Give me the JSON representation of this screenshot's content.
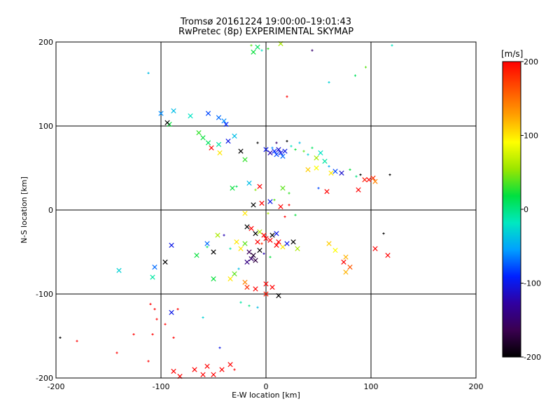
{
  "chart_data": {
    "type": "scatter",
    "title": "Tromsø 20161224 19:00:00–19:01:43",
    "subtitle": "RwPretec (8p) EXPERIMENTAL SKYMAP",
    "xlabel": "E-W location [km]",
    "ylabel": "N-S location [km]",
    "xlim": [
      -200,
      200
    ],
    "ylim": [
      -200,
      200
    ],
    "xticks": [
      -200,
      -100,
      0,
      100,
      200
    ],
    "yticks": [
      -200,
      -100,
      0,
      100,
      200
    ],
    "grid": true,
    "colorbar": {
      "label": "[m/s]",
      "range": [
        -200,
        200
      ],
      "ticks": [
        200,
        100,
        0,
        -100,
        -200
      ],
      "colormap": [
        "#000000",
        "#3a0050",
        "#3000a0",
        "#0020ff",
        "#00a0ff",
        "#00e8c0",
        "#00e040",
        "#9ae600",
        "#ffff00",
        "#ffa000",
        "#ff5000",
        "#ff0000"
      ]
    },
    "marker_types": [
      "x",
      "+"
    ],
    "points": [
      {
        "x": -12,
        "y": 188,
        "v": 20,
        "m": "x"
      },
      {
        "x": -8,
        "y": 194,
        "v": 10,
        "m": "x"
      },
      {
        "x": -14,
        "y": 196,
        "v": 40,
        "m": "+"
      },
      {
        "x": -4,
        "y": 190,
        "v": -20,
        "m": "+"
      },
      {
        "x": 2,
        "y": 192,
        "v": 30,
        "m": "+"
      },
      {
        "x": 14,
        "y": 198,
        "v": 60,
        "m": "x"
      },
      {
        "x": 44,
        "y": 190,
        "v": -150,
        "m": "+"
      },
      {
        "x": 120,
        "y": 196,
        "v": -20,
        "m": "+"
      },
      {
        "x": -112,
        "y": 163,
        "v": -40,
        "m": "+"
      },
      {
        "x": 95,
        "y": 170,
        "v": 40,
        "m": "+"
      },
      {
        "x": 85,
        "y": 160,
        "v": 10,
        "m": "+"
      },
      {
        "x": 60,
        "y": 152,
        "v": -30,
        "m": "+"
      },
      {
        "x": 20,
        "y": 135,
        "v": 200,
        "m": "+"
      },
      {
        "x": -100,
        "y": 115,
        "v": -60,
        "m": "x"
      },
      {
        "x": -88,
        "y": 118,
        "v": -40,
        "m": "x"
      },
      {
        "x": -72,
        "y": 112,
        "v": -20,
        "m": "x"
      },
      {
        "x": -55,
        "y": 115,
        "v": -80,
        "m": "x"
      },
      {
        "x": -45,
        "y": 110,
        "v": -70,
        "m": "x"
      },
      {
        "x": -40,
        "y": 106,
        "v": -60,
        "m": "x"
      },
      {
        "x": -38,
        "y": 102,
        "v": -90,
        "m": "x"
      },
      {
        "x": -92,
        "y": 102,
        "v": 20,
        "m": "x"
      },
      {
        "x": -94,
        "y": 104,
        "v": -200,
        "m": "x"
      },
      {
        "x": -64,
        "y": 92,
        "v": 30,
        "m": "x"
      },
      {
        "x": -60,
        "y": 86,
        "v": 20,
        "m": "x"
      },
      {
        "x": -55,
        "y": 80,
        "v": 10,
        "m": "x"
      },
      {
        "x": -45,
        "y": 78,
        "v": -10,
        "m": "x"
      },
      {
        "x": -36,
        "y": 82,
        "v": -100,
        "m": "x"
      },
      {
        "x": -30,
        "y": 88,
        "v": -40,
        "m": "x"
      },
      {
        "x": -24,
        "y": 70,
        "v": -200,
        "m": "x"
      },
      {
        "x": -52,
        "y": 74,
        "v": 200,
        "m": "x"
      },
      {
        "x": -44,
        "y": 68,
        "v": 100,
        "m": "x"
      },
      {
        "x": -20,
        "y": 60,
        "v": 30,
        "m": "x"
      },
      {
        "x": -8,
        "y": 80,
        "v": -200,
        "m": "+"
      },
      {
        "x": 0,
        "y": 72,
        "v": -100,
        "m": "x"
      },
      {
        "x": 4,
        "y": 68,
        "v": -120,
        "m": "x"
      },
      {
        "x": 8,
        "y": 70,
        "v": -90,
        "m": "x"
      },
      {
        "x": 10,
        "y": 66,
        "v": -80,
        "m": "x"
      },
      {
        "x": 12,
        "y": 72,
        "v": -110,
        "m": "x"
      },
      {
        "x": 14,
        "y": 68,
        "v": -100,
        "m": "x"
      },
      {
        "x": 16,
        "y": 64,
        "v": -70,
        "m": "x"
      },
      {
        "x": 18,
        "y": 70,
        "v": -100,
        "m": "x"
      },
      {
        "x": 6,
        "y": 74,
        "v": -60,
        "m": "+"
      },
      {
        "x": 10,
        "y": 80,
        "v": -150,
        "m": "+"
      },
      {
        "x": 20,
        "y": 82,
        "v": -200,
        "m": "+"
      },
      {
        "x": 24,
        "y": 76,
        "v": -20,
        "m": "+"
      },
      {
        "x": 28,
        "y": 72,
        "v": 20,
        "m": "+"
      },
      {
        "x": 32,
        "y": 80,
        "v": -40,
        "m": "+"
      },
      {
        "x": 36,
        "y": 70,
        "v": 40,
        "m": "+"
      },
      {
        "x": 40,
        "y": 66,
        "v": -30,
        "m": "+"
      },
      {
        "x": 44,
        "y": 74,
        "v": 10,
        "m": "+"
      },
      {
        "x": 48,
        "y": 62,
        "v": 60,
        "m": "x"
      },
      {
        "x": 52,
        "y": 68,
        "v": -20,
        "m": "x"
      },
      {
        "x": 56,
        "y": 58,
        "v": -10,
        "m": "x"
      },
      {
        "x": 60,
        "y": 52,
        "v": -50,
        "m": "+"
      },
      {
        "x": 40,
        "y": 48,
        "v": 110,
        "m": "x"
      },
      {
        "x": 48,
        "y": 50,
        "v": 90,
        "m": "x"
      },
      {
        "x": 62,
        "y": 44,
        "v": 100,
        "m": "x"
      },
      {
        "x": 66,
        "y": 46,
        "v": -80,
        "m": "x"
      },
      {
        "x": 72,
        "y": 44,
        "v": -110,
        "m": "x"
      },
      {
        "x": 80,
        "y": 48,
        "v": 20,
        "m": "+"
      },
      {
        "x": 86,
        "y": 40,
        "v": 0,
        "m": "+"
      },
      {
        "x": 90,
        "y": 42,
        "v": -200,
        "m": "+"
      },
      {
        "x": 94,
        "y": 36,
        "v": 190,
        "m": "x"
      },
      {
        "x": 98,
        "y": 36,
        "v": 200,
        "m": "x"
      },
      {
        "x": 102,
        "y": 38,
        "v": 180,
        "m": "x"
      },
      {
        "x": 104,
        "y": 34,
        "v": 140,
        "m": "x"
      },
      {
        "x": 118,
        "y": 42,
        "v": -200,
        "m": "+"
      },
      {
        "x": 88,
        "y": 24,
        "v": 200,
        "m": "x"
      },
      {
        "x": 58,
        "y": 22,
        "v": 200,
        "m": "x"
      },
      {
        "x": 50,
        "y": 26,
        "v": -80,
        "m": "+"
      },
      {
        "x": 16,
        "y": 26,
        "v": 40,
        "m": "x"
      },
      {
        "x": 22,
        "y": 20,
        "v": 30,
        "m": "+"
      },
      {
        "x": -32,
        "y": 26,
        "v": 20,
        "m": "x"
      },
      {
        "x": -28,
        "y": 28,
        "v": 10,
        "m": "+"
      },
      {
        "x": -10,
        "y": 24,
        "v": 50,
        "m": "+"
      },
      {
        "x": -6,
        "y": 28,
        "v": 200,
        "m": "x"
      },
      {
        "x": -16,
        "y": 32,
        "v": -40,
        "m": "x"
      },
      {
        "x": -4,
        "y": 8,
        "v": 200,
        "m": "x"
      },
      {
        "x": -12,
        "y": 6,
        "v": -200,
        "m": "x"
      },
      {
        "x": 4,
        "y": 10,
        "v": -100,
        "m": "x"
      },
      {
        "x": 8,
        "y": 12,
        "v": 40,
        "m": "+"
      },
      {
        "x": 14,
        "y": 4,
        "v": 200,
        "m": "x"
      },
      {
        "x": 22,
        "y": 6,
        "v": 200,
        "m": "+"
      },
      {
        "x": -20,
        "y": -4,
        "v": 100,
        "m": "x"
      },
      {
        "x": 2,
        "y": -4,
        "v": 60,
        "m": "+"
      },
      {
        "x": 18,
        "y": -8,
        "v": 200,
        "m": "+"
      },
      {
        "x": 28,
        "y": -6,
        "v": 20,
        "m": "+"
      },
      {
        "x": -18,
        "y": -20,
        "v": -200,
        "m": "x"
      },
      {
        "x": -14,
        "y": -22,
        "v": 200,
        "m": "x"
      },
      {
        "x": -10,
        "y": -28,
        "v": -200,
        "m": "x"
      },
      {
        "x": -6,
        "y": -26,
        "v": 60,
        "m": "x"
      },
      {
        "x": -2,
        "y": -30,
        "v": 200,
        "m": "x"
      },
      {
        "x": 0,
        "y": -34,
        "v": 200,
        "m": "x"
      },
      {
        "x": 4,
        "y": -36,
        "v": 200,
        "m": "x"
      },
      {
        "x": 6,
        "y": -30,
        "v": -200,
        "m": "x"
      },
      {
        "x": 10,
        "y": -28,
        "v": -100,
        "m": "x"
      },
      {
        "x": -8,
        "y": -38,
        "v": 200,
        "m": "x"
      },
      {
        "x": -4,
        "y": -40,
        "v": 180,
        "m": "+"
      },
      {
        "x": -20,
        "y": -40,
        "v": 40,
        "m": "x"
      },
      {
        "x": -24,
        "y": -46,
        "v": 100,
        "m": "x"
      },
      {
        "x": -16,
        "y": -50,
        "v": -160,
        "m": "x"
      },
      {
        "x": -12,
        "y": -54,
        "v": -180,
        "m": "x"
      },
      {
        "x": -14,
        "y": -58,
        "v": -150,
        "m": "x"
      },
      {
        "x": -10,
        "y": -60,
        "v": -170,
        "m": "x"
      },
      {
        "x": -18,
        "y": -62,
        "v": -140,
        "m": "x"
      },
      {
        "x": -6,
        "y": -48,
        "v": -200,
        "m": "x"
      },
      {
        "x": -2,
        "y": -52,
        "v": -120,
        "m": "+"
      },
      {
        "x": 4,
        "y": -56,
        "v": 20,
        "m": "+"
      },
      {
        "x": 10,
        "y": -42,
        "v": 200,
        "m": "x"
      },
      {
        "x": 16,
        "y": -44,
        "v": 100,
        "m": "x"
      },
      {
        "x": 20,
        "y": -40,
        "v": -100,
        "m": "x"
      },
      {
        "x": 26,
        "y": -38,
        "v": -200,
        "m": "x"
      },
      {
        "x": 30,
        "y": -46,
        "v": 60,
        "m": "x"
      },
      {
        "x": 12,
        "y": -38,
        "v": 200,
        "m": "x"
      },
      {
        "x": -28,
        "y": -38,
        "v": 100,
        "m": "x"
      },
      {
        "x": -34,
        "y": -46,
        "v": -10,
        "m": "+"
      },
      {
        "x": -40,
        "y": -30,
        "v": -120,
        "m": "+"
      },
      {
        "x": -46,
        "y": -30,
        "v": 60,
        "m": "x"
      },
      {
        "x": -56,
        "y": -40,
        "v": -70,
        "m": "x"
      },
      {
        "x": -66,
        "y": -54,
        "v": 20,
        "m": "x"
      },
      {
        "x": -50,
        "y": -50,
        "v": -200,
        "m": "x"
      },
      {
        "x": -56,
        "y": -44,
        "v": 10,
        "m": "+"
      },
      {
        "x": -90,
        "y": -42,
        "v": -100,
        "m": "x"
      },
      {
        "x": -96,
        "y": -62,
        "v": -200,
        "m": "x"
      },
      {
        "x": -106,
        "y": -68,
        "v": -70,
        "m": "x"
      },
      {
        "x": -140,
        "y": -72,
        "v": -30,
        "m": "x"
      },
      {
        "x": -108,
        "y": -80,
        "v": -10,
        "m": "x"
      },
      {
        "x": -50,
        "y": -82,
        "v": 20,
        "m": "x"
      },
      {
        "x": -34,
        "y": -82,
        "v": 100,
        "m": "x"
      },
      {
        "x": -30,
        "y": -76,
        "v": 40,
        "m": "x"
      },
      {
        "x": -26,
        "y": -70,
        "v": -40,
        "m": "+"
      },
      {
        "x": -20,
        "y": -86,
        "v": 140,
        "m": "x"
      },
      {
        "x": -18,
        "y": -92,
        "v": 180,
        "m": "x"
      },
      {
        "x": -10,
        "y": -94,
        "v": 200,
        "m": "x"
      },
      {
        "x": 0,
        "y": -88,
        "v": 200,
        "m": "x"
      },
      {
        "x": 6,
        "y": -92,
        "v": 200,
        "m": "x"
      },
      {
        "x": 0,
        "y": -100,
        "v": 190,
        "m": "x"
      },
      {
        "x": 12,
        "y": -102,
        "v": -200,
        "m": "x"
      },
      {
        "x": -24,
        "y": -110,
        "v": -10,
        "m": "+"
      },
      {
        "x": -16,
        "y": -114,
        "v": 0,
        "m": "+"
      },
      {
        "x": -8,
        "y": -116,
        "v": -40,
        "m": "+"
      },
      {
        "x": 60,
        "y": -40,
        "v": 110,
        "m": "x"
      },
      {
        "x": 66,
        "y": -48,
        "v": 90,
        "m": "x"
      },
      {
        "x": 76,
        "y": -56,
        "v": 120,
        "m": "x"
      },
      {
        "x": 74,
        "y": -62,
        "v": 200,
        "m": "x"
      },
      {
        "x": 76,
        "y": -74,
        "v": 120,
        "m": "x"
      },
      {
        "x": 80,
        "y": -68,
        "v": 160,
        "m": "x"
      },
      {
        "x": 104,
        "y": -46,
        "v": 200,
        "m": "x"
      },
      {
        "x": 116,
        "y": -54,
        "v": 200,
        "m": "x"
      },
      {
        "x": 112,
        "y": -28,
        "v": -200,
        "m": "+"
      },
      {
        "x": -110,
        "y": -112,
        "v": 200,
        "m": "+"
      },
      {
        "x": -106,
        "y": -118,
        "v": 200,
        "m": "+"
      },
      {
        "x": -90,
        "y": -122,
        "v": -100,
        "m": "x"
      },
      {
        "x": -84,
        "y": -118,
        "v": 200,
        "m": "+"
      },
      {
        "x": -96,
        "y": -136,
        "v": 200,
        "m": "+"
      },
      {
        "x": -104,
        "y": -130,
        "v": 200,
        "m": "+"
      },
      {
        "x": -60,
        "y": -128,
        "v": -30,
        "m": "+"
      },
      {
        "x": -88,
        "y": -152,
        "v": 200,
        "m": "+"
      },
      {
        "x": -126,
        "y": -148,
        "v": 200,
        "m": "+"
      },
      {
        "x": -108,
        "y": -148,
        "v": 200,
        "m": "+"
      },
      {
        "x": -196,
        "y": -152,
        "v": -200,
        "m": "+"
      },
      {
        "x": -180,
        "y": -156,
        "v": 200,
        "m": "+"
      },
      {
        "x": -142,
        "y": -170,
        "v": 200,
        "m": "+"
      },
      {
        "x": -112,
        "y": -180,
        "v": 200,
        "m": "+"
      },
      {
        "x": -44,
        "y": -164,
        "v": -100,
        "m": "+"
      },
      {
        "x": -88,
        "y": -192,
        "v": 200,
        "m": "x"
      },
      {
        "x": -82,
        "y": -198,
        "v": 200,
        "m": "x"
      },
      {
        "x": -68,
        "y": -190,
        "v": 200,
        "m": "x"
      },
      {
        "x": -56,
        "y": -186,
        "v": 200,
        "m": "x"
      },
      {
        "x": -42,
        "y": -190,
        "v": 200,
        "m": "x"
      },
      {
        "x": -60,
        "y": -196,
        "v": 200,
        "m": "x"
      },
      {
        "x": -50,
        "y": -196,
        "v": 200,
        "m": "x"
      },
      {
        "x": -34,
        "y": -184,
        "v": 200,
        "m": "x"
      },
      {
        "x": -30,
        "y": -190,
        "v": 200,
        "m": "+"
      }
    ]
  }
}
